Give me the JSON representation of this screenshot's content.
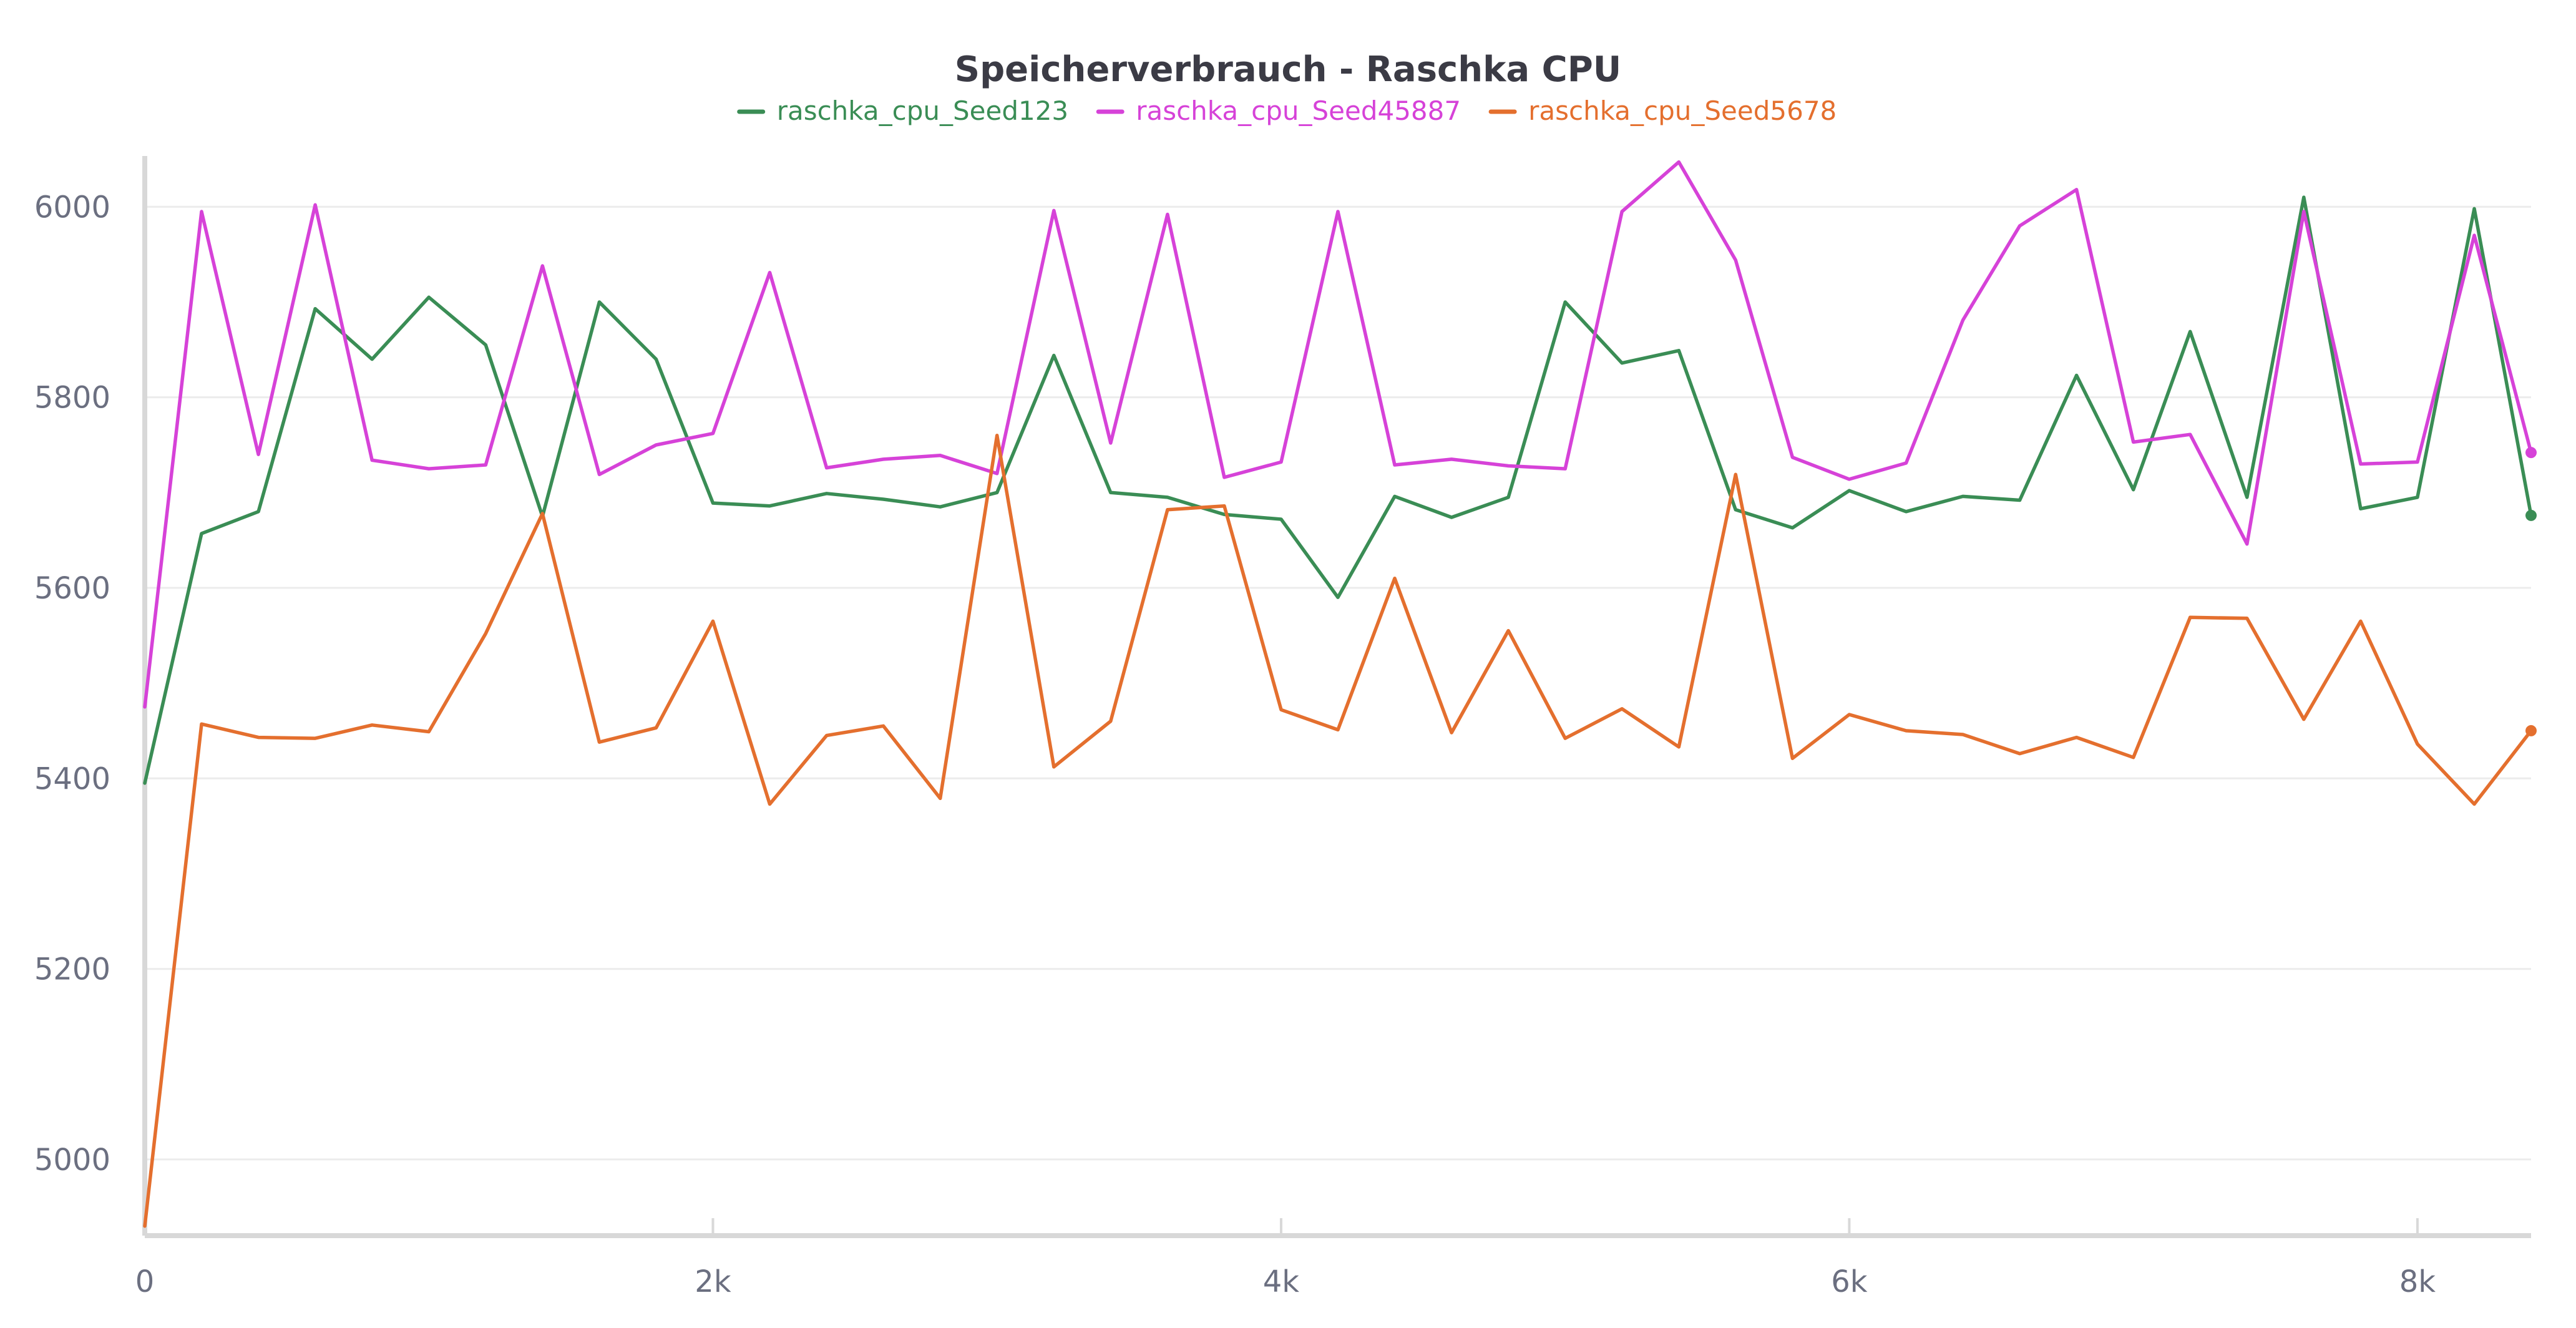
{
  "chart_data": {
    "type": "line",
    "title": "Speicherverbrauch - Raschka CPU",
    "xlabel": "",
    "ylabel": "",
    "xlim": [
      0,
      8400
    ],
    "ylim": [
      4920,
      6050
    ],
    "x_ticks": [
      0,
      2000,
      4000,
      6000,
      8000
    ],
    "x_tick_labels": [
      "0",
      "2k",
      "4k",
      "6k",
      "8k"
    ],
    "y_ticks": [
      5000,
      5200,
      5400,
      5600,
      5800,
      6000
    ],
    "y_tick_labels": [
      "5000",
      "5200",
      "5400",
      "5600",
      "5800",
      "6000"
    ],
    "grid": true,
    "legend_position": "top-center",
    "x": [
      0,
      200,
      400,
      600,
      800,
      1000,
      1200,
      1400,
      1600,
      1800,
      2000,
      2200,
      2400,
      2600,
      2800,
      3000,
      3200,
      3400,
      3600,
      3800,
      4000,
      4200,
      4400,
      4600,
      4800,
      5000,
      5200,
      5400,
      5600,
      5800,
      6000,
      6200,
      6400,
      6600,
      6800,
      7000,
      7200,
      7400,
      7600,
      7800,
      8000,
      8200,
      8400
    ],
    "series": [
      {
        "name": "raschka_cpu_Seed123",
        "color": "#3a8d55",
        "values": [
          5395,
          5657,
          5680,
          5893,
          5840,
          5905,
          5855,
          5675,
          5900,
          5840,
          5689,
          5686,
          5699,
          5693,
          5685,
          5700,
          5844,
          5700,
          5695,
          5677,
          5672,
          5590,
          5696,
          5674,
          5695,
          5900,
          5836,
          5849,
          5682,
          5663,
          5702,
          5680,
          5696,
          5692,
          5823,
          5703,
          5869,
          5695,
          6010,
          5683,
          5695,
          5998,
          5676
        ]
      },
      {
        "name": "raschka_cpu_Seed45887",
        "color": "#d642d8",
        "values": [
          5475,
          5995,
          5740,
          6002,
          5734,
          5725,
          5729,
          5938,
          5719,
          5750,
          5762,
          5931,
          5726,
          5735,
          5739,
          5720,
          5996,
          5752,
          5992,
          5716,
          5732,
          5995,
          5729,
          5735,
          5728,
          5725,
          5995,
          6047,
          5944,
          5737,
          5714,
          5731,
          5881,
          5980,
          6018,
          5753,
          5761,
          5646,
          5995,
          5730,
          5732,
          5970,
          5742
        ]
      },
      {
        "name": "raschka_cpu_Seed5678",
        "color": "#e46f2e",
        "values": [
          4930,
          5457,
          5443,
          5442,
          5456,
          5449,
          5552,
          5678,
          5438,
          5453,
          5565,
          5373,
          5445,
          5455,
          5379,
          5760,
          5412,
          5460,
          5682,
          5686,
          5472,
          5451,
          5610,
          5448,
          5555,
          5442,
          5473,
          5433,
          5719,
          5421,
          5467,
          5450,
          5446,
          5426,
          5443,
          5422,
          5569,
          5568,
          5462,
          5565,
          5436,
          5373,
          5450
        ]
      }
    ]
  }
}
